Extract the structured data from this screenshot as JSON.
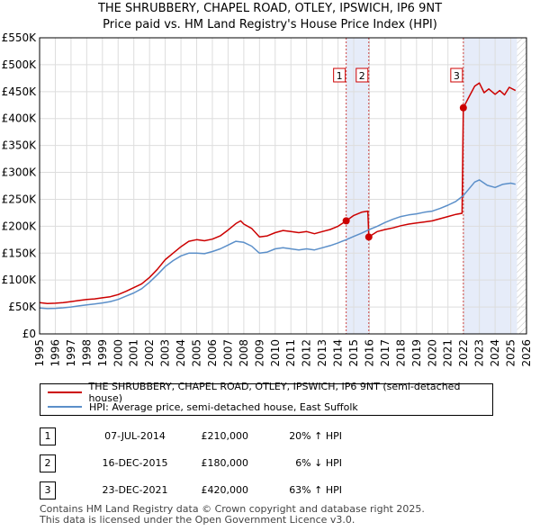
{
  "chart_data": {
    "type": "line",
    "title": "THE SHRUBBERY, CHAPEL ROAD, OTLEY, IPSWICH, IP6 9NT",
    "subtitle": "Price paid vs. HM Land Registry's House Price Index (HPI)",
    "xlim": [
      1995,
      2026
    ],
    "ylim": [
      0,
      550000
    ],
    "x_ticks": [
      "1995",
      "1996",
      "1997",
      "1998",
      "1999",
      "2000",
      "2001",
      "2002",
      "2003",
      "2004",
      "2005",
      "2006",
      "2007",
      "2008",
      "2009",
      "2010",
      "2011",
      "2012",
      "2013",
      "2014",
      "2015",
      "2016",
      "2017",
      "2018",
      "2019",
      "2020",
      "2021",
      "2022",
      "2023",
      "2024",
      "2025",
      "2026"
    ],
    "y_ticks": [
      {
        "value": 0,
        "label": "£0"
      },
      {
        "value": 50000,
        "label": "£50K"
      },
      {
        "value": 100000,
        "label": "£100K"
      },
      {
        "value": 150000,
        "label": "£150K"
      },
      {
        "value": 200000,
        "label": "£200K"
      },
      {
        "value": 250000,
        "label": "£250K"
      },
      {
        "value": 300000,
        "label": "£300K"
      },
      {
        "value": 350000,
        "label": "£350K"
      },
      {
        "value": 400000,
        "label": "£400K"
      },
      {
        "value": 450000,
        "label": "£450K"
      },
      {
        "value": 500000,
        "label": "£500K"
      },
      {
        "value": 550000,
        "label": "£550K"
      }
    ],
    "grid": true,
    "series": [
      {
        "name": "THE SHRUBBERY, CHAPEL ROAD, OTLEY, IPSWICH, IP6 9NT (semi-detached house)",
        "color": "#cc0000",
        "points": [
          [
            1995.0,
            58000
          ],
          [
            1995.5,
            56500
          ],
          [
            1996.0,
            57000
          ],
          [
            1996.5,
            58000
          ],
          [
            1997.0,
            60000
          ],
          [
            1997.5,
            62000
          ],
          [
            1998.0,
            64000
          ],
          [
            1998.5,
            65000
          ],
          [
            1999.0,
            67000
          ],
          [
            1999.5,
            69000
          ],
          [
            2000.0,
            73000
          ],
          [
            2000.5,
            79000
          ],
          [
            2001.0,
            86000
          ],
          [
            2001.5,
            93000
          ],
          [
            2002.0,
            105000
          ],
          [
            2002.5,
            120000
          ],
          [
            2003.0,
            138000
          ],
          [
            2003.5,
            150000
          ],
          [
            2004.0,
            162000
          ],
          [
            2004.5,
            172000
          ],
          [
            2005.0,
            175000
          ],
          [
            2005.5,
            173000
          ],
          [
            2006.0,
            176000
          ],
          [
            2006.5,
            182000
          ],
          [
            2007.0,
            193000
          ],
          [
            2007.5,
            205000
          ],
          [
            2007.8,
            210000
          ],
          [
            2008.0,
            204000
          ],
          [
            2008.5,
            196000
          ],
          [
            2009.0,
            180000
          ],
          [
            2009.5,
            182000
          ],
          [
            2010.0,
            188000
          ],
          [
            2010.5,
            192000
          ],
          [
            2011.0,
            190000
          ],
          [
            2011.5,
            188000
          ],
          [
            2012.0,
            190000
          ],
          [
            2012.5,
            186000
          ],
          [
            2013.0,
            190000
          ],
          [
            2013.5,
            194000
          ],
          [
            2014.0,
            200000
          ],
          [
            2014.52,
            210000
          ],
          [
            2015.0,
            220000
          ],
          [
            2015.5,
            226000
          ],
          [
            2015.9,
            228000
          ],
          [
            2015.96,
            180000
          ],
          [
            2016.5,
            190000
          ],
          [
            2017.0,
            194000
          ],
          [
            2017.5,
            197000
          ],
          [
            2018.0,
            201000
          ],
          [
            2018.5,
            204000
          ],
          [
            2019.0,
            206000
          ],
          [
            2019.5,
            208000
          ],
          [
            2020.0,
            210000
          ],
          [
            2020.5,
            214000
          ],
          [
            2021.0,
            218000
          ],
          [
            2021.5,
            222000
          ],
          [
            2021.9,
            224000
          ],
          [
            2021.98,
            420000
          ],
          [
            2022.3,
            438000
          ],
          [
            2022.7,
            460000
          ],
          [
            2023.0,
            466000
          ],
          [
            2023.3,
            448000
          ],
          [
            2023.6,
            455000
          ],
          [
            2024.0,
            445000
          ],
          [
            2024.3,
            452000
          ],
          [
            2024.6,
            444000
          ],
          [
            2024.9,
            458000
          ],
          [
            2025.3,
            452000
          ]
        ]
      },
      {
        "name": "HPI: Average price, semi-detached house, East Suffolk",
        "color": "#5b8fc9",
        "points": [
          [
            1995.0,
            48000
          ],
          [
            1995.5,
            47000
          ],
          [
            1996.0,
            47500
          ],
          [
            1996.5,
            48500
          ],
          [
            1997.0,
            50000
          ],
          [
            1997.5,
            52000
          ],
          [
            1998.0,
            54000
          ],
          [
            1998.5,
            55500
          ],
          [
            1999.0,
            57500
          ],
          [
            1999.5,
            60000
          ],
          [
            2000.0,
            64000
          ],
          [
            2000.5,
            70000
          ],
          [
            2001.0,
            76000
          ],
          [
            2001.5,
            84000
          ],
          [
            2002.0,
            96000
          ],
          [
            2002.5,
            110000
          ],
          [
            2003.0,
            125000
          ],
          [
            2003.5,
            136000
          ],
          [
            2004.0,
            145000
          ],
          [
            2004.5,
            150000
          ],
          [
            2005.0,
            150000
          ],
          [
            2005.5,
            149000
          ],
          [
            2006.0,
            153000
          ],
          [
            2006.5,
            158000
          ],
          [
            2007.0,
            165000
          ],
          [
            2007.5,
            172000
          ],
          [
            2008.0,
            170000
          ],
          [
            2008.5,
            163000
          ],
          [
            2009.0,
            150000
          ],
          [
            2009.5,
            152000
          ],
          [
            2010.0,
            158000
          ],
          [
            2010.5,
            160000
          ],
          [
            2011.0,
            158000
          ],
          [
            2011.5,
            156000
          ],
          [
            2012.0,
            158000
          ],
          [
            2012.5,
            156000
          ],
          [
            2013.0,
            160000
          ],
          [
            2013.5,
            164000
          ],
          [
            2014.0,
            169000
          ],
          [
            2014.52,
            175000
          ],
          [
            2015.0,
            181000
          ],
          [
            2015.5,
            187000
          ],
          [
            2016.0,
            194000
          ],
          [
            2016.5,
            200000
          ],
          [
            2017.0,
            207000
          ],
          [
            2017.5,
            213000
          ],
          [
            2018.0,
            218000
          ],
          [
            2018.5,
            221000
          ],
          [
            2019.0,
            223000
          ],
          [
            2019.5,
            226000
          ],
          [
            2020.0,
            228000
          ],
          [
            2020.5,
            233000
          ],
          [
            2021.0,
            239000
          ],
          [
            2021.5,
            246000
          ],
          [
            2021.98,
            257000
          ],
          [
            2022.3,
            268000
          ],
          [
            2022.7,
            282000
          ],
          [
            2023.0,
            286000
          ],
          [
            2023.5,
            276000
          ],
          [
            2024.0,
            272000
          ],
          [
            2024.5,
            278000
          ],
          [
            2025.0,
            280000
          ],
          [
            2025.3,
            278000
          ]
        ]
      }
    ],
    "sales": [
      {
        "n": "1",
        "x": 2014.52,
        "price": 210000
      },
      {
        "n": "2",
        "x": 2015.96,
        "price": 180000
      },
      {
        "n": "3",
        "x": 2021.98,
        "price": 420000
      }
    ],
    "shaded_ranges": [
      [
        2014.52,
        2015.96
      ],
      [
        2021.98,
        2025.4
      ]
    ],
    "hatched_range": [
      2025.4,
      2026
    ]
  },
  "legend": {
    "entries": [
      {
        "label": "THE SHRUBBERY, CHAPEL ROAD, OTLEY, IPSWICH, IP6 9NT (semi-detached house)",
        "color": "#cc0000"
      },
      {
        "label": "HPI: Average price, semi-detached house, East Suffolk",
        "color": "#5b8fc9"
      }
    ]
  },
  "transactions": [
    {
      "n": "1",
      "date": "07-JUL-2014",
      "price": "£210,000",
      "hpi": "20% ↑ HPI"
    },
    {
      "n": "2",
      "date": "16-DEC-2015",
      "price": "£180,000",
      "hpi": "6% ↓ HPI"
    },
    {
      "n": "3",
      "date": "23-DEC-2021",
      "price": "£420,000",
      "hpi": "63% ↑ HPI"
    }
  ],
  "footer": {
    "line1": "Contains HM Land Registry data © Crown copyright and database right 2025.",
    "line2": "This data is licensed under the Open Government Licence v3.0."
  }
}
